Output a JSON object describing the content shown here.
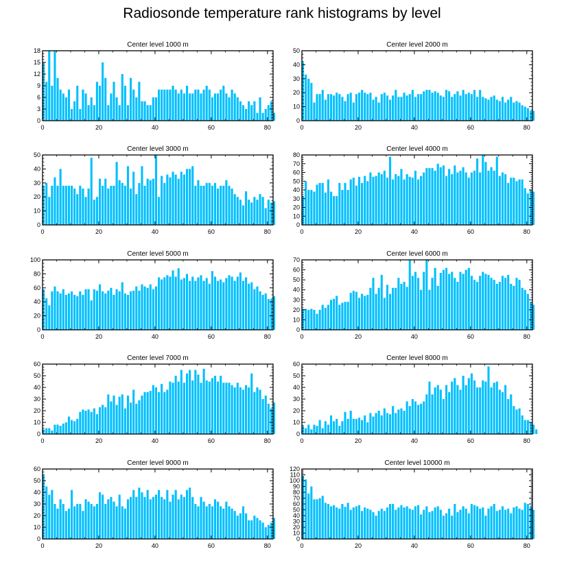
{
  "chart_data": {
    "type": "bar",
    "title": "Radiosonde temperature rank histograms by level",
    "bar_color": "#00BFFF",
    "panels": [
      {
        "title": "Center level 1000 m",
        "xlim": [
          0,
          82
        ],
        "ylim": [
          0,
          18
        ],
        "yticks": [
          0,
          3,
          6,
          9,
          12,
          15,
          18
        ],
        "xticks": [
          0,
          20,
          40,
          60,
          80
        ],
        "values": [
          15,
          10,
          18,
          9,
          18,
          11,
          8,
          7,
          6,
          8,
          3,
          5,
          9,
          3,
          8,
          7,
          4,
          6,
          4,
          10,
          9,
          15,
          11,
          4,
          7,
          10,
          6,
          4,
          12,
          9,
          4,
          11,
          8,
          6,
          10,
          5,
          5,
          4,
          4,
          6,
          6,
          8,
          8,
          8,
          8,
          8,
          9,
          8,
          7,
          8,
          7,
          9,
          7,
          7,
          8,
          8,
          7,
          8,
          9,
          8,
          6,
          7,
          7,
          8,
          9,
          7,
          6,
          8,
          7,
          6,
          5,
          4,
          3,
          5,
          4,
          5,
          2,
          6,
          2,
          3,
          4,
          5,
          2
        ]
      },
      {
        "title": "Center level 2000 m",
        "xlim": [
          0,
          82
        ],
        "ylim": [
          0,
          50
        ],
        "yticks": [
          0,
          10,
          20,
          30,
          40,
          50
        ],
        "xticks": [
          0,
          20,
          40,
          60,
          80
        ],
        "values": [
          42,
          33,
          30,
          27,
          13,
          19,
          19,
          22,
          15,
          19,
          19,
          18,
          20,
          19,
          17,
          14,
          19,
          20,
          13,
          19,
          20,
          22,
          20,
          19,
          20,
          15,
          17,
          13,
          19,
          20,
          18,
          15,
          18,
          22,
          17,
          17,
          20,
          18,
          19,
          22,
          17,
          19,
          19,
          21,
          22,
          22,
          20,
          21,
          20,
          18,
          17,
          22,
          21,
          17,
          19,
          21,
          18,
          22,
          19,
          20,
          19,
          22,
          17,
          22,
          17,
          16,
          15,
          17,
          18,
          15,
          14,
          17,
          13,
          15,
          17,
          13,
          14,
          13,
          11,
          10,
          9,
          7,
          7
        ]
      },
      {
        "title": "Center level 3000 m",
        "xlim": [
          0,
          82
        ],
        "ylim": [
          0,
          50
        ],
        "yticks": [
          0,
          10,
          20,
          30,
          40,
          50
        ],
        "xticks": [
          0,
          20,
          40,
          60,
          80
        ],
        "values": [
          28,
          30,
          20,
          28,
          34,
          28,
          40,
          28,
          28,
          28,
          28,
          26,
          22,
          28,
          26,
          20,
          26,
          48,
          18,
          20,
          33,
          28,
          33,
          26,
          28,
          28,
          45,
          32,
          30,
          28,
          42,
          26,
          38,
          22,
          30,
          42,
          28,
          33,
          32,
          33,
          50,
          20,
          35,
          30,
          36,
          34,
          38,
          36,
          33,
          38,
          36,
          40,
          40,
          42,
          28,
          32,
          28,
          28,
          30,
          30,
          28,
          30,
          26,
          28,
          28,
          32,
          28,
          26,
          22,
          20,
          18,
          14,
          24,
          18,
          16,
          20,
          18,
          22,
          20,
          12,
          18,
          16,
          17
        ]
      },
      {
        "title": "Center level 4000 m",
        "xlim": [
          0,
          82
        ],
        "ylim": [
          0,
          80
        ],
        "yticks": [
          0,
          10,
          20,
          30,
          40,
          50,
          60,
          70,
          80
        ],
        "xticks": [
          0,
          20,
          40,
          60,
          80
        ],
        "values": [
          33,
          50,
          40,
          40,
          38,
          46,
          48,
          48,
          37,
          52,
          38,
          33,
          33,
          48,
          40,
          48,
          40,
          52,
          54,
          45,
          55,
          48,
          56,
          50,
          60,
          55,
          56,
          60,
          58,
          62,
          54,
          78,
          52,
          58,
          56,
          64,
          52,
          58,
          55,
          54,
          62,
          52,
          56,
          60,
          65,
          65,
          65,
          62,
          70,
          66,
          68,
          56,
          64,
          58,
          68,
          60,
          62,
          66,
          60,
          54,
          60,
          62,
          76,
          60,
          80,
          72,
          62,
          66,
          62,
          78,
          56,
          60,
          58,
          48,
          54,
          54,
          50,
          52,
          52,
          42,
          36,
          40,
          38
        ]
      },
      {
        "title": "Center level 5000 m",
        "xlim": [
          0,
          82
        ],
        "ylim": [
          0,
          100
        ],
        "yticks": [
          0,
          20,
          40,
          60,
          80,
          100
        ],
        "xticks": [
          0,
          20,
          40,
          60,
          80
        ],
        "values": [
          58,
          45,
          35,
          55,
          62,
          55,
          52,
          58,
          50,
          52,
          55,
          50,
          48,
          55,
          50,
          58,
          58,
          42,
          58,
          56,
          65,
          55,
          52,
          56,
          60,
          50,
          58,
          55,
          68,
          52,
          50,
          55,
          56,
          62,
          56,
          65,
          62,
          60,
          65,
          58,
          62,
          75,
          72,
          75,
          78,
          76,
          85,
          76,
          88,
          72,
          74,
          80,
          70,
          76,
          70,
          75,
          78,
          70,
          74,
          66,
          84,
          76,
          70,
          72,
          68,
          74,
          78,
          76,
          70,
          76,
          82,
          70,
          75,
          66,
          68,
          58,
          62,
          55,
          50,
          52,
          44,
          44,
          48
        ]
      },
      {
        "title": "Center level 6000 m",
        "xlim": [
          0,
          82
        ],
        "ylim": [
          0,
          70
        ],
        "yticks": [
          0,
          10,
          20,
          30,
          40,
          50,
          60,
          70
        ],
        "xticks": [
          0,
          20,
          40,
          60,
          80
        ],
        "values": [
          21,
          21,
          20,
          21,
          20,
          16,
          20,
          25,
          22,
          25,
          30,
          31,
          34,
          25,
          27,
          28,
          28,
          37,
          39,
          38,
          32,
          36,
          34,
          35,
          42,
          52,
          36,
          42,
          55,
          32,
          45,
          36,
          42,
          42,
          52,
          46,
          48,
          43,
          70,
          54,
          58,
          52,
          40,
          58,
          70,
          40,
          52,
          62,
          44,
          57,
          60,
          62,
          56,
          58,
          52,
          48,
          58,
          56,
          60,
          62,
          54,
          50,
          48,
          54,
          58,
          56,
          55,
          52,
          50,
          46,
          48,
          54,
          52,
          55,
          46,
          44,
          52,
          50,
          42,
          40,
          36,
          28,
          25
        ]
      },
      {
        "title": "Center level 7000 m",
        "xlim": [
          0,
          82
        ],
        "ylim": [
          0,
          60
        ],
        "yticks": [
          0,
          10,
          20,
          30,
          40,
          50,
          60
        ],
        "xticks": [
          0,
          20,
          40,
          60,
          80
        ],
        "values": [
          4,
          5,
          5,
          3,
          8,
          8,
          7,
          9,
          10,
          15,
          12,
          11,
          13,
          19,
          21,
          20,
          21,
          19,
          22,
          17,
          23,
          25,
          23,
          34,
          28,
          33,
          25,
          32,
          34,
          22,
          33,
          27,
          38,
          26,
          29,
          33,
          36,
          36,
          37,
          42,
          40,
          36,
          43,
          36,
          38,
          45,
          44,
          50,
          45,
          55,
          44,
          52,
          55,
          46,
          55,
          51,
          44,
          56,
          46,
          45,
          48,
          50,
          45,
          50,
          44,
          44,
          44,
          42,
          40,
          44,
          40,
          38,
          42,
          40,
          52,
          36,
          40,
          38,
          30,
          33,
          26,
          22,
          27
        ]
      },
      {
        "title": "Center level 8000 m",
        "xlim": [
          0,
          82
        ],
        "ylim": [
          0,
          60
        ],
        "yticks": [
          0,
          10,
          20,
          30,
          40,
          50,
          60
        ],
        "xticks": [
          0,
          20,
          40,
          60,
          80
        ],
        "values": [
          7,
          5,
          8,
          4,
          8,
          7,
          12,
          5,
          11,
          8,
          16,
          11,
          13,
          7,
          11,
          19,
          13,
          20,
          13,
          13,
          14,
          12,
          16,
          10,
          18,
          15,
          18,
          20,
          16,
          22,
          18,
          17,
          24,
          18,
          21,
          22,
          20,
          28,
          24,
          30,
          28,
          25,
          26,
          28,
          34,
          45,
          34,
          40,
          42,
          38,
          30,
          42,
          36,
          45,
          48,
          42,
          38,
          50,
          42,
          48,
          52,
          46,
          40,
          40,
          46,
          45,
          58,
          40,
          44,
          45,
          38,
          36,
          42,
          30,
          34,
          24,
          21,
          22,
          16,
          12,
          12,
          10,
          8,
          4
        ]
      },
      {
        "title": "Center level 9000 m",
        "xlim": [
          0,
          82
        ],
        "ylim": [
          0,
          60
        ],
        "yticks": [
          0,
          10,
          20,
          30,
          40,
          50,
          60
        ],
        "xticks": [
          0,
          20,
          40,
          60,
          80
        ],
        "values": [
          55,
          45,
          38,
          42,
          30,
          26,
          34,
          30,
          24,
          26,
          42,
          28,
          30,
          30,
          24,
          34,
          32,
          30,
          28,
          30,
          40,
          38,
          30,
          34,
          36,
          32,
          28,
          38,
          28,
          26,
          34,
          36,
          42,
          36,
          44,
          40,
          36,
          42,
          34,
          36,
          38,
          42,
          36,
          34,
          42,
          32,
          38,
          42,
          34,
          38,
          36,
          42,
          44,
          36,
          30,
          28,
          36,
          32,
          28,
          30,
          28,
          34,
          32,
          28,
          26,
          32,
          28,
          26,
          24,
          20,
          22,
          28,
          22,
          16,
          16,
          20,
          18,
          16,
          14,
          10,
          12,
          14,
          18
        ]
      },
      {
        "title": "Center level 10000 m",
        "xlim": [
          0,
          82
        ],
        "ylim": [
          0,
          120
        ],
        "yticks": [
          0,
          10,
          20,
          30,
          40,
          50,
          60,
          70,
          80,
          90,
          100,
          110,
          120
        ],
        "xticks": [
          0,
          20,
          40,
          60,
          80
        ],
        "values": [
          108,
          102,
          78,
          90,
          68,
          68,
          70,
          74,
          62,
          60,
          56,
          58,
          54,
          52,
          60,
          55,
          62,
          50,
          54,
          56,
          58,
          48,
          54,
          52,
          50,
          46,
          40,
          48,
          52,
          48,
          54,
          60,
          60,
          50,
          54,
          58,
          54,
          56,
          52,
          50,
          56,
          58,
          42,
          50,
          56,
          46,
          48,
          54,
          56,
          50,
          40,
          44,
          52,
          40,
          60,
          46,
          50,
          56,
          52,
          44,
          60,
          58,
          56,
          52,
          54,
          40,
          52,
          56,
          60,
          48,
          50,
          56,
          50,
          52,
          44,
          54,
          56,
          52,
          50,
          62,
          60,
          56,
          50
        ]
      }
    ]
  }
}
